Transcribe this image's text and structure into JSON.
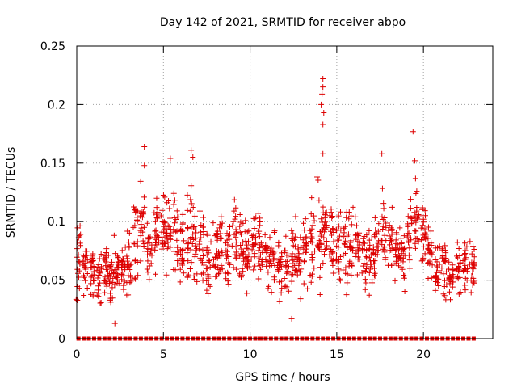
{
  "chart_data": {
    "type": "scatter",
    "title": "Day 142 of 2021, SRMTID for receiver abpo",
    "xlabel": "GPS time / hours",
    "ylabel": "SRMTID / TECUs",
    "xlim": [
      0,
      24
    ],
    "ylim": [
      0,
      0.25
    ],
    "xticks": [
      0,
      5,
      10,
      15,
      20
    ],
    "yticks": [
      0,
      0.05,
      0.1,
      0.15,
      0.2,
      0.25
    ],
    "xtick_labels": [
      "0",
      "5",
      "10",
      "15",
      "20"
    ],
    "ytick_labels": [
      "0",
      "0.05",
      "0.1",
      "0.15",
      "0.2",
      "0.25"
    ],
    "grid": true,
    "marker": "+",
    "series_color": "#dd0000",
    "cluster_hours": [
      0.1,
      0.5,
      0.9,
      1.3,
      1.7,
      2.0,
      2.3,
      2.7,
      3.0,
      3.4,
      3.8,
      4.2,
      4.6,
      5.0,
      5.3,
      5.7,
      6.1,
      6.5,
      6.8,
      7.2,
      7.6,
      8.0,
      8.3,
      8.7,
      9.1,
      9.5,
      9.8,
      10.2,
      10.6,
      11.0,
      11.3,
      11.7,
      12.1,
      12.5,
      12.8,
      13.2,
      13.6,
      14.0,
      14.3,
      14.7,
      15.1,
      15.5,
      15.8,
      16.2,
      16.6,
      17.0,
      17.3,
      17.7,
      18.1,
      18.5,
      18.8,
      19.2,
      19.6,
      20.0,
      20.4,
      20.8,
      21.2,
      21.6,
      22.0,
      22.4,
      22.8
    ],
    "cluster_centers": [
      0.07,
      0.06,
      0.06,
      0.05,
      0.06,
      0.05,
      0.06,
      0.06,
      0.07,
      0.08,
      0.1,
      0.08,
      0.09,
      0.09,
      0.09,
      0.09,
      0.08,
      0.09,
      0.08,
      0.08,
      0.07,
      0.07,
      0.08,
      0.07,
      0.08,
      0.08,
      0.07,
      0.08,
      0.08,
      0.07,
      0.07,
      0.06,
      0.06,
      0.07,
      0.07,
      0.08,
      0.08,
      0.09,
      0.09,
      0.08,
      0.08,
      0.08,
      0.08,
      0.08,
      0.07,
      0.07,
      0.08,
      0.09,
      0.08,
      0.08,
      0.07,
      0.09,
      0.1,
      0.09,
      0.07,
      0.06,
      0.06,
      0.05,
      0.06,
      0.06,
      0.06
    ],
    "cluster_spreads": [
      0.028,
      0.02,
      0.018,
      0.02,
      0.022,
      0.02,
      0.02,
      0.02,
      0.025,
      0.03,
      0.035,
      0.025,
      0.03,
      0.03,
      0.03,
      0.03,
      0.03,
      0.035,
      0.03,
      0.028,
      0.025,
      0.025,
      0.028,
      0.025,
      0.03,
      0.028,
      0.025,
      0.025,
      0.025,
      0.025,
      0.022,
      0.02,
      0.022,
      0.025,
      0.025,
      0.03,
      0.03,
      0.04,
      0.03,
      0.028,
      0.028,
      0.028,
      0.025,
      0.028,
      0.025,
      0.025,
      0.03,
      0.03,
      0.025,
      0.028,
      0.025,
      0.03,
      0.03,
      0.028,
      0.022,
      0.02,
      0.02,
      0.015,
      0.02,
      0.022,
      0.02
    ],
    "outliers": [
      {
        "x": 3.9,
        "y": 0.164
      },
      {
        "x": 3.9,
        "y": 0.148
      },
      {
        "x": 5.4,
        "y": 0.154
      },
      {
        "x": 6.6,
        "y": 0.161
      },
      {
        "x": 6.7,
        "y": 0.155
      },
      {
        "x": 14.2,
        "y": 0.222
      },
      {
        "x": 14.2,
        "y": 0.215
      },
      {
        "x": 14.15,
        "y": 0.209
      },
      {
        "x": 14.1,
        "y": 0.2
      },
      {
        "x": 14.25,
        "y": 0.193
      },
      {
        "x": 14.2,
        "y": 0.183
      },
      {
        "x": 14.2,
        "y": 0.158
      },
      {
        "x": 17.6,
        "y": 0.158
      },
      {
        "x": 19.4,
        "y": 0.177
      },
      {
        "x": 19.5,
        "y": 0.152
      },
      {
        "x": 2.2,
        "y": 0.013
      },
      {
        "x": 12.4,
        "y": 0.017
      }
    ],
    "zero_markers_hours": [
      0.1,
      0.4,
      0.7,
      1.0,
      1.3,
      1.6,
      1.9,
      2.2,
      2.5,
      2.8,
      3.1,
      3.4,
      3.7,
      4.0,
      4.3,
      4.6,
      4.9,
      5.2,
      5.5,
      5.8,
      6.1,
      6.4,
      6.7,
      7.0,
      7.3,
      7.6,
      7.9,
      8.2,
      8.5,
      8.8,
      9.1,
      9.4,
      9.7,
      10.0,
      10.3,
      10.6,
      10.9,
      11.2,
      11.5,
      11.8,
      12.1,
      12.4,
      12.7,
      13.0,
      13.3,
      13.6,
      13.9,
      14.2,
      14.5,
      14.8,
      15.1,
      15.4,
      15.7,
      16.0,
      16.3,
      16.6,
      16.9,
      17.2,
      17.5,
      17.8,
      18.1,
      18.4,
      18.7,
      19.0,
      19.3,
      19.6,
      19.9,
      20.2,
      20.5,
      20.8,
      21.1,
      21.4,
      21.7,
      22.0,
      22.3,
      22.6,
      22.9
    ]
  }
}
